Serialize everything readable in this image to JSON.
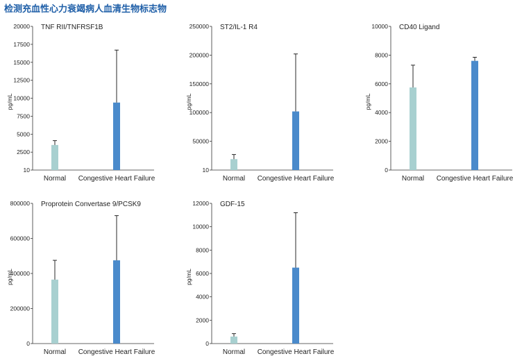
{
  "page_title": "检测充血性心力衰竭病人血清生物标志物",
  "colors": {
    "normal": "#a8d0d0",
    "chf": "#4a8acb",
    "axis": "#333333",
    "title": "#1f5fa8"
  },
  "chart_data": [
    {
      "type": "bar",
      "title": "TNF RII/TNFRSF1B",
      "ylabel": "pg/mL",
      "categories": [
        "Normal",
        "Congestive Heart Failure"
      ],
      "values": [
        3500,
        9400
      ],
      "errors": [
        600,
        7300
      ],
      "ylim": [
        10,
        20000
      ],
      "yticks": [
        10,
        2500,
        5000,
        7500,
        10000,
        12500,
        15000,
        17500,
        20000
      ],
      "grid": false
    },
    {
      "type": "bar",
      "title": "ST2/IL-1 R4",
      "ylabel": "pg/mL",
      "categories": [
        "Normal",
        "Congestive Heart Failure"
      ],
      "values": [
        19000,
        102000
      ],
      "errors": [
        8000,
        100000
      ],
      "ylim": [
        10,
        250000
      ],
      "yticks": [
        10,
        50000,
        100000,
        150000,
        200000,
        250000
      ],
      "grid": false
    },
    {
      "type": "bar",
      "title": "CD40 Ligand",
      "ylabel": "pg/mL",
      "categories": [
        "Normal",
        "Congestive Heart Failure"
      ],
      "values": [
        5750,
        7600
      ],
      "errors": [
        1550,
        250
      ],
      "ylim": [
        0,
        10000
      ],
      "yticks": [
        0,
        2000,
        4000,
        6000,
        8000,
        10000
      ],
      "grid": false
    },
    {
      "type": "bar",
      "title": "Proprotein Convertase 9/PCSK9",
      "ylabel": "pg/mL",
      "categories": [
        "Normal",
        "Congestive Heart Failure"
      ],
      "values": [
        365000,
        475000
      ],
      "errors": [
        110000,
        255000
      ],
      "ylim": [
        0,
        800000
      ],
      "yticks": [
        0,
        200000,
        400000,
        600000,
        800000
      ],
      "grid": false
    },
    {
      "type": "bar",
      "title": "GDF-15",
      "ylabel": "pg/mL",
      "categories": [
        "Normal",
        "Congestive Heart Failure"
      ],
      "values": [
        600,
        6500
      ],
      "errors": [
        250,
        4700
      ],
      "ylim": [
        0,
        12000
      ],
      "yticks": [
        0,
        2000,
        4000,
        6000,
        8000,
        10000,
        12000
      ],
      "grid": false
    }
  ]
}
